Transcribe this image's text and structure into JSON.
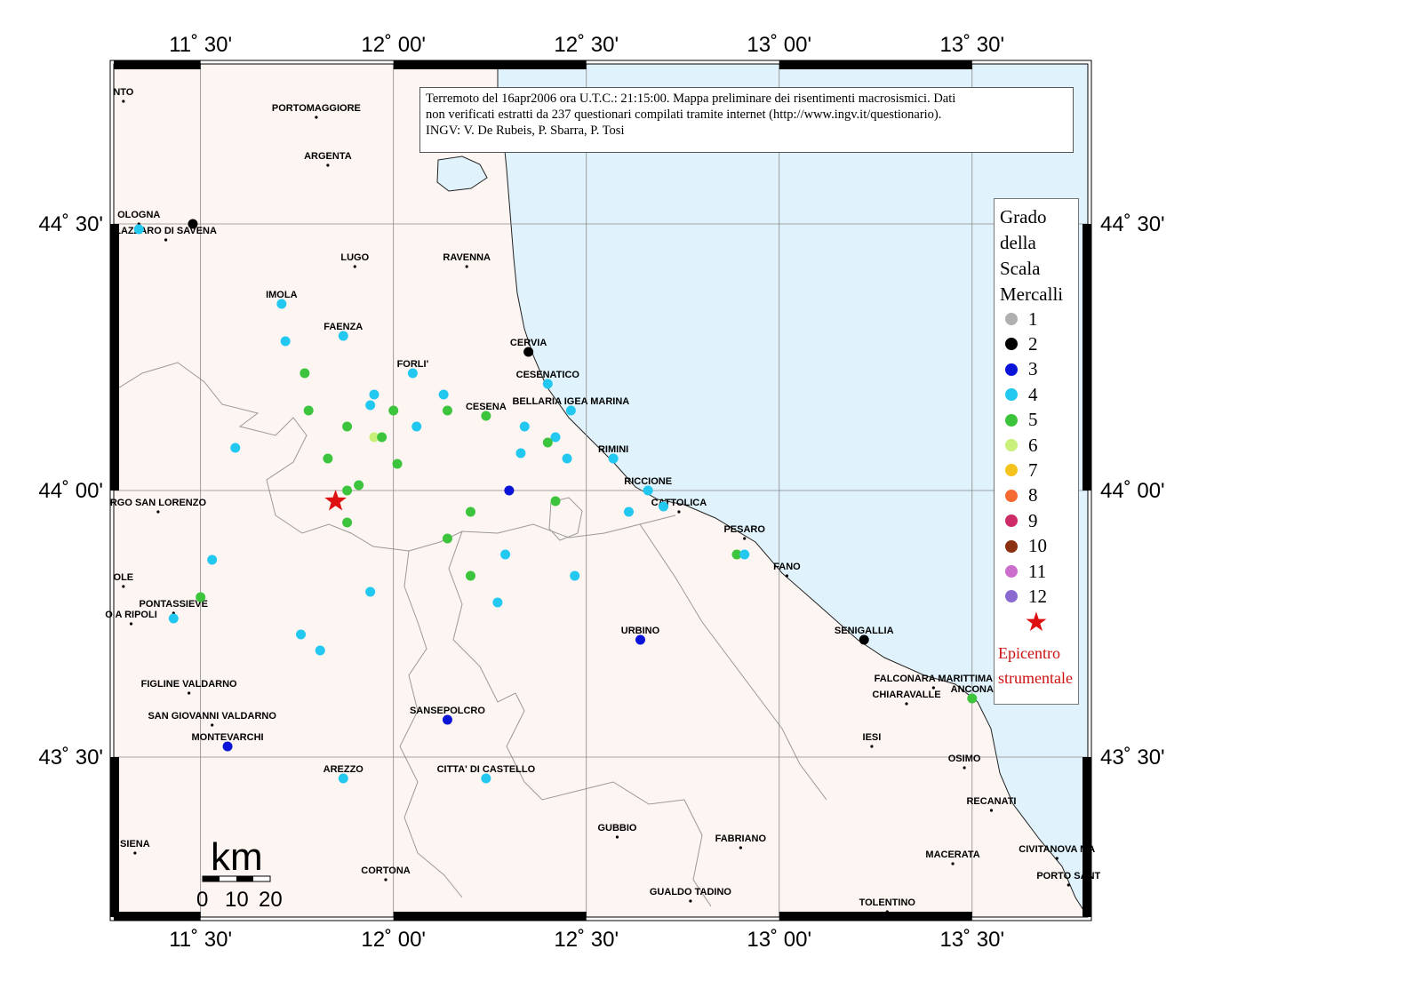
{
  "map": {
    "lon_min": 11.275,
    "lon_max": 13.8,
    "lat_min": 43.2,
    "lat_max": 44.8,
    "lon_ticks": [
      {
        "lon": 11.5,
        "label": "11˚ 30'"
      },
      {
        "lon": 12.0,
        "label": "12˚ 00'"
      },
      {
        "lon": 12.5,
        "label": "12˚ 30'"
      },
      {
        "lon": 13.0,
        "label": "13˚ 00'"
      },
      {
        "lon": 13.5,
        "label": "13˚ 30'"
      }
    ],
    "lat_ticks": [
      {
        "lat": 44.5,
        "label": "44˚ 30'"
      },
      {
        "lat": 44.0,
        "label": "44˚ 00'"
      },
      {
        "lat": 43.5,
        "label": "43˚ 30'"
      }
    ],
    "land_color": "#fdf5f2",
    "sea_color": "#e0f3fc",
    "border_color": "#999999"
  },
  "info": {
    "line1": "Terremoto del 16apr2006 ora U.T.C.: 21:15:00.  Mappa preliminare dei risentimenti macrosismici.  Dati",
    "line2": "non verificati estratti da 237 questionari compilati tramite internet (http://www.ingv.it/questionario).",
    "line3": "INGV: V.  De Rubeis, P.  Sbarra, P.  Tosi"
  },
  "legend": {
    "title_lines": [
      "Grado",
      "della",
      "Scala",
      "Mercalli"
    ],
    "items": [
      {
        "label": "1",
        "color": "#b0b0b0"
      },
      {
        "label": "2",
        "color": "#000000"
      },
      {
        "label": "3",
        "color": "#0a14d8"
      },
      {
        "label": "4",
        "color": "#22c8ef"
      },
      {
        "label": "5",
        "color": "#3cc43c"
      },
      {
        "label": "6",
        "color": "#c8f07a"
      },
      {
        "label": "7",
        "color": "#f5c31e"
      },
      {
        "label": "8",
        "color": "#f46a32"
      },
      {
        "label": "9",
        "color": "#cc2b66"
      },
      {
        "label": "10",
        "color": "#8b3010"
      },
      {
        "label": "11",
        "color": "#cc6ecc"
      },
      {
        "label": "12",
        "color": "#8a6ad0"
      }
    ],
    "epicenter_lines": [
      "Epicentro",
      "strumentale"
    ]
  },
  "scale_bar": {
    "unit": "km",
    "labels": [
      "0",
      "10",
      "20"
    ]
  },
  "epicenter": {
    "lon": 11.85,
    "lat": 43.98
  },
  "cities": [
    {
      "name": "NTO",
      "lon": 11.3,
      "lat": 44.73
    },
    {
      "name": "PORTOMAGGIORE",
      "lon": 11.8,
      "lat": 44.7
    },
    {
      "name": "ARGENTA",
      "lon": 11.83,
      "lat": 44.61
    },
    {
      "name": "OLOGNA",
      "lon": 11.34,
      "lat": 44.5
    },
    {
      "name": "LAZZARO DI SAVENA",
      "lon": 11.41,
      "lat": 44.47
    },
    {
      "name": "LUGO",
      "lon": 11.9,
      "lat": 44.42
    },
    {
      "name": "RAVENNA",
      "lon": 12.19,
      "lat": 44.42
    },
    {
      "name": "IMOLA",
      "lon": 11.71,
      "lat": 44.35
    },
    {
      "name": "FAENZA",
      "lon": 11.87,
      "lat": 44.29
    },
    {
      "name": "CERVIA",
      "lon": 12.35,
      "lat": 44.26
    },
    {
      "name": "FORLI'",
      "lon": 12.05,
      "lat": 44.22
    },
    {
      "name": "CESENATICO",
      "lon": 12.4,
      "lat": 44.2
    },
    {
      "name": "BELLARIA IGEA MARINA",
      "lon": 12.46,
      "lat": 44.15
    },
    {
      "name": "CESENA",
      "lon": 12.24,
      "lat": 44.14
    },
    {
      "name": "RIMINI",
      "lon": 12.57,
      "lat": 44.06
    },
    {
      "name": "RICCIONE",
      "lon": 12.66,
      "lat": 44.0
    },
    {
      "name": "CATTOLICA",
      "lon": 12.74,
      "lat": 43.96
    },
    {
      "name": "RGO SAN LORENZO",
      "lon": 11.39,
      "lat": 43.96
    },
    {
      "name": "PESARO",
      "lon": 12.91,
      "lat": 43.91
    },
    {
      "name": "FANO",
      "lon": 13.02,
      "lat": 43.84
    },
    {
      "name": "OLE",
      "lon": 11.3,
      "lat": 43.82
    },
    {
      "name": "PONTASSIEVE",
      "lon": 11.43,
      "lat": 43.77
    },
    {
      "name": "O A RIPOLI",
      "lon": 11.32,
      "lat": 43.75
    },
    {
      "name": "URBINO",
      "lon": 12.64,
      "lat": 43.72
    },
    {
      "name": "SENIGALLIA",
      "lon": 13.22,
      "lat": 43.72
    },
    {
      "name": "FIGLINE VALDARNO",
      "lon": 11.47,
      "lat": 43.62
    },
    {
      "name": "FALCONARA MARITTIMA",
      "lon": 13.4,
      "lat": 43.63
    },
    {
      "name": "CHIARAVALLE",
      "lon": 13.33,
      "lat": 43.6
    },
    {
      "name": "ANCONA",
      "lon": 13.5,
      "lat": 43.61
    },
    {
      "name": "SAN GIOVANNI VALDARNO",
      "lon": 11.53,
      "lat": 43.56
    },
    {
      "name": "SANSEPOLCRO",
      "lon": 12.14,
      "lat": 43.57
    },
    {
      "name": "MONTEVARCHI",
      "lon": 11.57,
      "lat": 43.52
    },
    {
      "name": "IESI",
      "lon": 13.24,
      "lat": 43.52
    },
    {
      "name": "OSIMO",
      "lon": 13.48,
      "lat": 43.48
    },
    {
      "name": "AREZZO",
      "lon": 11.87,
      "lat": 43.46
    },
    {
      "name": "CITTA' DI CASTELLO",
      "lon": 12.24,
      "lat": 43.46
    },
    {
      "name": "RECANATI",
      "lon": 13.55,
      "lat": 43.4
    },
    {
      "name": "GUBBIO",
      "lon": 12.58,
      "lat": 43.35
    },
    {
      "name": "FABRIANO",
      "lon": 12.9,
      "lat": 43.33
    },
    {
      "name": "SIENA",
      "lon": 11.33,
      "lat": 43.32
    },
    {
      "name": "MACERATA",
      "lon": 13.45,
      "lat": 43.3
    },
    {
      "name": "CIVITANOVA MA",
      "lon": 13.72,
      "lat": 43.31
    },
    {
      "name": "CORTONA",
      "lon": 11.98,
      "lat": 43.27
    },
    {
      "name": "PORTO SANT",
      "lon": 13.75,
      "lat": 43.26
    },
    {
      "name": "GUALDO TADINO",
      "lon": 12.77,
      "lat": 43.23
    },
    {
      "name": "TOLENTINO",
      "lon": 13.28,
      "lat": 43.21
    }
  ],
  "observations": [
    {
      "lon": 11.34,
      "lat": 44.49,
      "grade": 4
    },
    {
      "lon": 11.48,
      "lat": 44.5,
      "grade": 2
    },
    {
      "lon": 11.71,
      "lat": 44.35,
      "grade": 4
    },
    {
      "lon": 11.72,
      "lat": 44.28,
      "grade": 4
    },
    {
      "lon": 11.87,
      "lat": 44.29,
      "grade": 4
    },
    {
      "lon": 11.77,
      "lat": 44.22,
      "grade": 5
    },
    {
      "lon": 11.78,
      "lat": 44.15,
      "grade": 5
    },
    {
      "lon": 11.88,
      "lat": 44.12,
      "grade": 5
    },
    {
      "lon": 11.83,
      "lat": 44.06,
      "grade": 5
    },
    {
      "lon": 11.59,
      "lat": 44.08,
      "grade": 4
    },
    {
      "lon": 11.94,
      "lat": 44.16,
      "grade": 4
    },
    {
      "lon": 11.95,
      "lat": 44.18,
      "grade": 4
    },
    {
      "lon": 12.05,
      "lat": 44.22,
      "grade": 4
    },
    {
      "lon": 12.0,
      "lat": 44.15,
      "grade": 5
    },
    {
      "lon": 11.95,
      "lat": 44.1,
      "grade": 6
    },
    {
      "lon": 11.97,
      "lat": 44.1,
      "grade": 5
    },
    {
      "lon": 12.01,
      "lat": 44.05,
      "grade": 5
    },
    {
      "lon": 11.91,
      "lat": 44.01,
      "grade": 5
    },
    {
      "lon": 11.88,
      "lat": 44.0,
      "grade": 5
    },
    {
      "lon": 11.88,
      "lat": 43.94,
      "grade": 5
    },
    {
      "lon": 12.13,
      "lat": 44.18,
      "grade": 4
    },
    {
      "lon": 12.14,
      "lat": 44.15,
      "grade": 5
    },
    {
      "lon": 12.06,
      "lat": 44.12,
      "grade": 4
    },
    {
      "lon": 12.24,
      "lat": 44.14,
      "grade": 5
    },
    {
      "lon": 12.35,
      "lat": 44.26,
      "grade": 2
    },
    {
      "lon": 12.4,
      "lat": 44.2,
      "grade": 4
    },
    {
      "lon": 12.46,
      "lat": 44.15,
      "grade": 4
    },
    {
      "lon": 12.34,
      "lat": 44.12,
      "grade": 4
    },
    {
      "lon": 12.42,
      "lat": 44.1,
      "grade": 4
    },
    {
      "lon": 12.4,
      "lat": 44.09,
      "grade": 5
    },
    {
      "lon": 12.33,
      "lat": 44.07,
      "grade": 4
    },
    {
      "lon": 12.45,
      "lat": 44.06,
      "grade": 4
    },
    {
      "lon": 12.57,
      "lat": 44.06,
      "grade": 4
    },
    {
      "lon": 12.3,
      "lat": 44.0,
      "grade": 3
    },
    {
      "lon": 12.42,
      "lat": 43.98,
      "grade": 5
    },
    {
      "lon": 12.2,
      "lat": 43.96,
      "grade": 5
    },
    {
      "lon": 12.61,
      "lat": 43.96,
      "grade": 4
    },
    {
      "lon": 12.66,
      "lat": 44.0,
      "grade": 4
    },
    {
      "lon": 12.7,
      "lat": 43.97,
      "grade": 4
    },
    {
      "lon": 12.14,
      "lat": 43.91,
      "grade": 5
    },
    {
      "lon": 12.29,
      "lat": 43.88,
      "grade": 4
    },
    {
      "lon": 12.2,
      "lat": 43.84,
      "grade": 5
    },
    {
      "lon": 12.47,
      "lat": 43.84,
      "grade": 4
    },
    {
      "lon": 12.27,
      "lat": 43.79,
      "grade": 4
    },
    {
      "lon": 11.94,
      "lat": 43.81,
      "grade": 4
    },
    {
      "lon": 11.53,
      "lat": 43.87,
      "grade": 4
    },
    {
      "lon": 11.5,
      "lat": 43.8,
      "grade": 5
    },
    {
      "lon": 11.43,
      "lat": 43.76,
      "grade": 4
    },
    {
      "lon": 11.76,
      "lat": 43.73,
      "grade": 4
    },
    {
      "lon": 11.81,
      "lat": 43.7,
      "grade": 4
    },
    {
      "lon": 12.64,
      "lat": 43.72,
      "grade": 3
    },
    {
      "lon": 12.89,
      "lat": 43.88,
      "grade": 5
    },
    {
      "lon": 12.91,
      "lat": 43.88,
      "grade": 4
    },
    {
      "lon": 13.22,
      "lat": 43.72,
      "grade": 2
    },
    {
      "lon": 13.5,
      "lat": 43.61,
      "grade": 5
    },
    {
      "lon": 12.14,
      "lat": 43.57,
      "grade": 3
    },
    {
      "lon": 11.57,
      "lat": 43.52,
      "grade": 3
    },
    {
      "lon": 11.87,
      "lat": 43.46,
      "grade": 4
    },
    {
      "lon": 12.24,
      "lat": 43.46,
      "grade": 4
    }
  ]
}
